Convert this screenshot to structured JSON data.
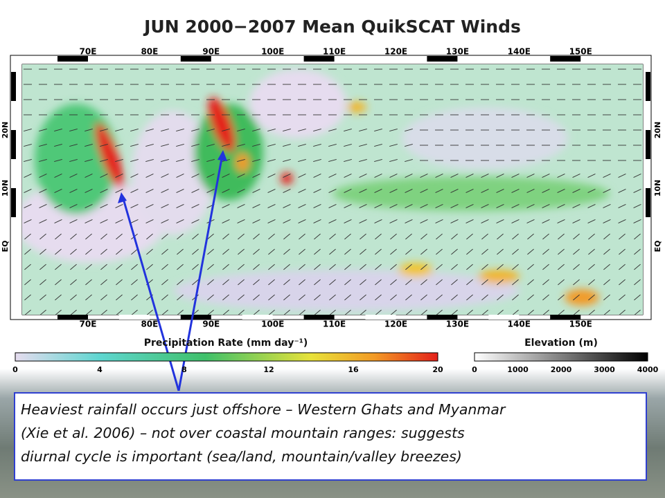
{
  "title": "JUN 2000−2007 Mean QuikSCAT Winds",
  "map": {
    "top_lon_labels": [
      "70E",
      "80E",
      "90E",
      "100E",
      "110E",
      "120E",
      "130E",
      "140E",
      "150E"
    ],
    "bottom_lon_labels": [
      "70E",
      "80E",
      "90E",
      "100E",
      "110E",
      "120E",
      "130E",
      "140E",
      "150E"
    ],
    "left_lat_labels": [
      "20N",
      "10N",
      "EQ"
    ],
    "right_lat_labels": [
      "20N",
      "10N",
      "EQ"
    ]
  },
  "precip_colorbar": {
    "label": "Precipitation Rate (mm day⁻¹)",
    "ticks": [
      "0",
      "4",
      "8",
      "12",
      "16",
      "20"
    ]
  },
  "elevation_colorbar": {
    "label": "Elevation (m)",
    "ticks": [
      "0",
      "1000",
      "2000",
      "3000",
      "4000"
    ]
  },
  "caption": [
    "Heaviest rainfall occurs just offshore – Western Ghats and Myanmar",
    "(Xie et al. 2006) – not over coastal mountain ranges: suggests",
    "diurnal cycle is important (sea/land, mountain/valley breezes)"
  ]
}
